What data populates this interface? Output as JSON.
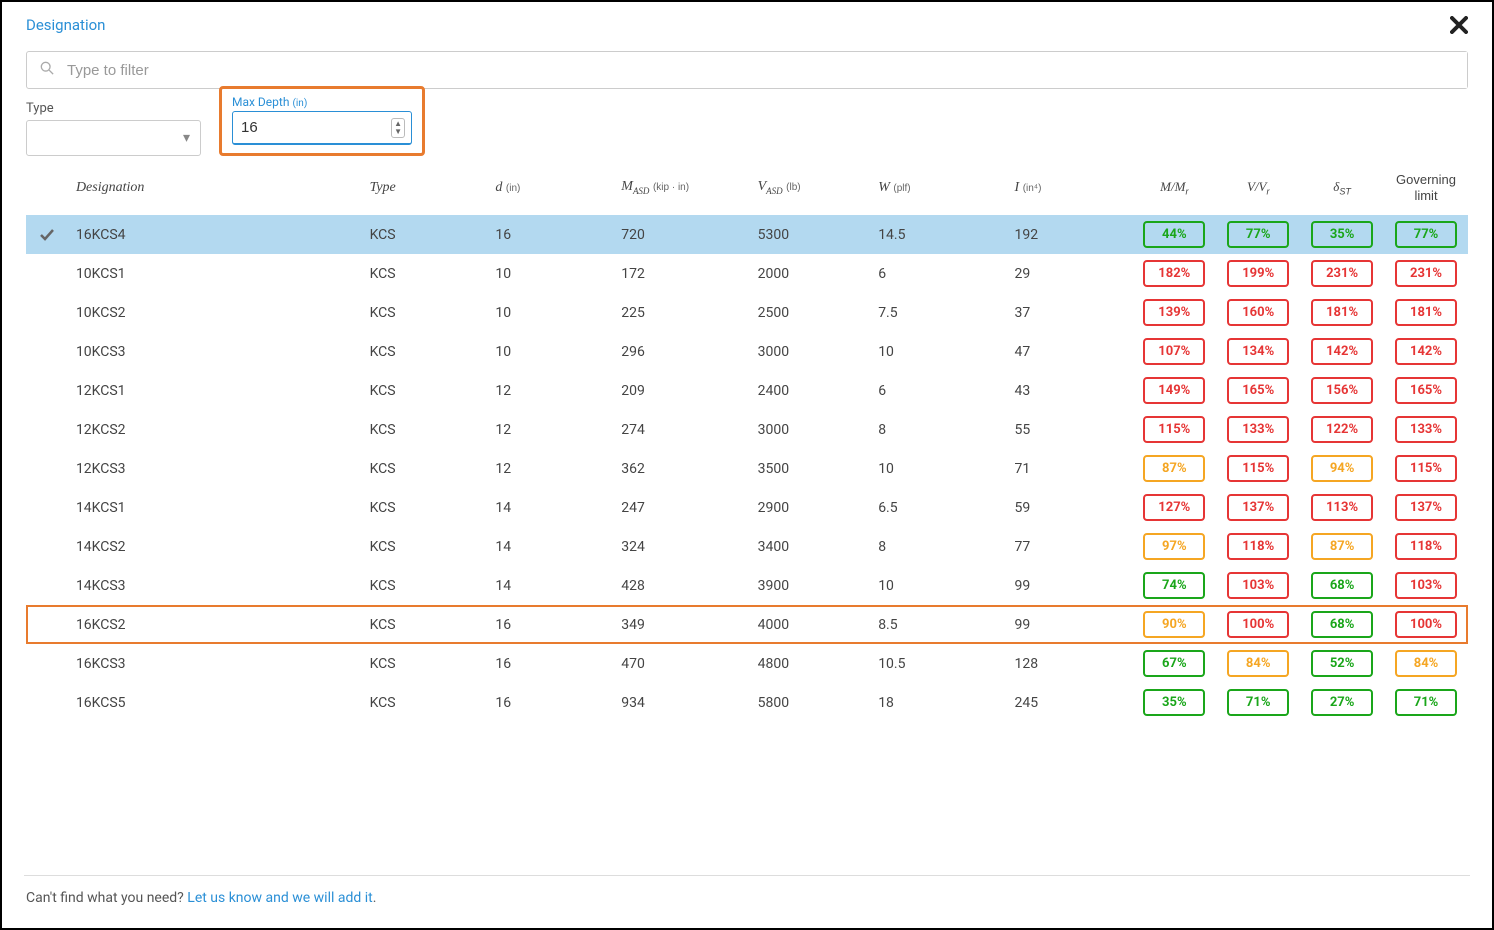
{
  "header": {
    "title": "Designation",
    "close_label": "✕"
  },
  "search": {
    "placeholder": "Type to filter"
  },
  "filters": {
    "type_label": "Type",
    "depth_label": "Max Depth",
    "depth_unit": "(in)",
    "depth_value": "16"
  },
  "columns": {
    "designation": "Designation",
    "type": "Type",
    "d_label": "d",
    "d_unit": "(in)",
    "m_label": "M",
    "m_sub": "ASD",
    "m_unit": "(kip · in)",
    "v_label": "V",
    "v_sub": "ASD",
    "v_unit": "(lb)",
    "w_label": "W",
    "w_unit": "(plf)",
    "i_label": "I",
    "i_unit": "(in⁴)",
    "mmr": "M/M",
    "mmr_sub": "r",
    "vvr": "V/V",
    "vvr_sub": "r",
    "delta": "δ",
    "delta_sub": "ST",
    "gov": "Governing limit"
  },
  "rows": [
    {
      "selected": true,
      "highlight": false,
      "designation": "16KCS4",
      "type": "KCS",
      "d": "16",
      "m": "720",
      "v": "5300",
      "w": "14.5",
      "i": "192",
      "mmr": {
        "val": "44%",
        "c": "g"
      },
      "vvr": {
        "val": "77%",
        "c": "g"
      },
      "dst": {
        "val": "35%",
        "c": "g"
      },
      "gov": {
        "val": "77%",
        "c": "g"
      }
    },
    {
      "selected": false,
      "highlight": false,
      "designation": "10KCS1",
      "type": "KCS",
      "d": "10",
      "m": "172",
      "v": "2000",
      "w": "6",
      "i": "29",
      "mmr": {
        "val": "182%",
        "c": "r"
      },
      "vvr": {
        "val": "199%",
        "c": "r"
      },
      "dst": {
        "val": "231%",
        "c": "r"
      },
      "gov": {
        "val": "231%",
        "c": "r"
      }
    },
    {
      "selected": false,
      "highlight": false,
      "designation": "10KCS2",
      "type": "KCS",
      "d": "10",
      "m": "225",
      "v": "2500",
      "w": "7.5",
      "i": "37",
      "mmr": {
        "val": "139%",
        "c": "r"
      },
      "vvr": {
        "val": "160%",
        "c": "r"
      },
      "dst": {
        "val": "181%",
        "c": "r"
      },
      "gov": {
        "val": "181%",
        "c": "r"
      }
    },
    {
      "selected": false,
      "highlight": false,
      "designation": "10KCS3",
      "type": "KCS",
      "d": "10",
      "m": "296",
      "v": "3000",
      "w": "10",
      "i": "47",
      "mmr": {
        "val": "107%",
        "c": "r"
      },
      "vvr": {
        "val": "134%",
        "c": "r"
      },
      "dst": {
        "val": "142%",
        "c": "r"
      },
      "gov": {
        "val": "142%",
        "c": "r"
      }
    },
    {
      "selected": false,
      "highlight": false,
      "designation": "12KCS1",
      "type": "KCS",
      "d": "12",
      "m": "209",
      "v": "2400",
      "w": "6",
      "i": "43",
      "mmr": {
        "val": "149%",
        "c": "r"
      },
      "vvr": {
        "val": "165%",
        "c": "r"
      },
      "dst": {
        "val": "156%",
        "c": "r"
      },
      "gov": {
        "val": "165%",
        "c": "r"
      }
    },
    {
      "selected": false,
      "highlight": false,
      "designation": "12KCS2",
      "type": "KCS",
      "d": "12",
      "m": "274",
      "v": "3000",
      "w": "8",
      "i": "55",
      "mmr": {
        "val": "115%",
        "c": "r"
      },
      "vvr": {
        "val": "133%",
        "c": "r"
      },
      "dst": {
        "val": "122%",
        "c": "r"
      },
      "gov": {
        "val": "133%",
        "c": "r"
      }
    },
    {
      "selected": false,
      "highlight": false,
      "designation": "12KCS3",
      "type": "KCS",
      "d": "12",
      "m": "362",
      "v": "3500",
      "w": "10",
      "i": "71",
      "mmr": {
        "val": "87%",
        "c": "o"
      },
      "vvr": {
        "val": "115%",
        "c": "r"
      },
      "dst": {
        "val": "94%",
        "c": "o"
      },
      "gov": {
        "val": "115%",
        "c": "r"
      }
    },
    {
      "selected": false,
      "highlight": false,
      "designation": "14KCS1",
      "type": "KCS",
      "d": "14",
      "m": "247",
      "v": "2900",
      "w": "6.5",
      "i": "59",
      "mmr": {
        "val": "127%",
        "c": "r"
      },
      "vvr": {
        "val": "137%",
        "c": "r"
      },
      "dst": {
        "val": "113%",
        "c": "r"
      },
      "gov": {
        "val": "137%",
        "c": "r"
      }
    },
    {
      "selected": false,
      "highlight": false,
      "designation": "14KCS2",
      "type": "KCS",
      "d": "14",
      "m": "324",
      "v": "3400",
      "w": "8",
      "i": "77",
      "mmr": {
        "val": "97%",
        "c": "o"
      },
      "vvr": {
        "val": "118%",
        "c": "r"
      },
      "dst": {
        "val": "87%",
        "c": "o"
      },
      "gov": {
        "val": "118%",
        "c": "r"
      }
    },
    {
      "selected": false,
      "highlight": false,
      "designation": "14KCS3",
      "type": "KCS",
      "d": "14",
      "m": "428",
      "v": "3900",
      "w": "10",
      "i": "99",
      "mmr": {
        "val": "74%",
        "c": "g"
      },
      "vvr": {
        "val": "103%",
        "c": "r"
      },
      "dst": {
        "val": "68%",
        "c": "g"
      },
      "gov": {
        "val": "103%",
        "c": "r"
      }
    },
    {
      "selected": false,
      "highlight": true,
      "designation": "16KCS2",
      "type": "KCS",
      "d": "16",
      "m": "349",
      "v": "4000",
      "w": "8.5",
      "i": "99",
      "mmr": {
        "val": "90%",
        "c": "o"
      },
      "vvr": {
        "val": "100%",
        "c": "r"
      },
      "dst": {
        "val": "68%",
        "c": "g"
      },
      "gov": {
        "val": "100%",
        "c": "r"
      }
    },
    {
      "selected": false,
      "highlight": false,
      "designation": "16KCS3",
      "type": "KCS",
      "d": "16",
      "m": "470",
      "v": "4800",
      "w": "10.5",
      "i": "128",
      "mmr": {
        "val": "67%",
        "c": "g"
      },
      "vvr": {
        "val": "84%",
        "c": "o"
      },
      "dst": {
        "val": "52%",
        "c": "g"
      },
      "gov": {
        "val": "84%",
        "c": "o"
      }
    },
    {
      "selected": false,
      "highlight": false,
      "designation": "16KCS5",
      "type": "KCS",
      "d": "16",
      "m": "934",
      "v": "5800",
      "w": "18",
      "i": "245",
      "mmr": {
        "val": "35%",
        "c": "g"
      },
      "vvr": {
        "val": "71%",
        "c": "g"
      },
      "dst": {
        "val": "27%",
        "c": "g"
      },
      "gov": {
        "val": "71%",
        "c": "g"
      }
    }
  ],
  "footer": {
    "text": "Can't find what you need? ",
    "link": "Let us know and we will add it"
  },
  "colors": {
    "green": "#1aa61a",
    "orange": "#f5a623",
    "red": "#e63535",
    "link": "#2a8fd6",
    "highlight": "#e87b2e",
    "selected_bg": "#b3d9f0"
  }
}
